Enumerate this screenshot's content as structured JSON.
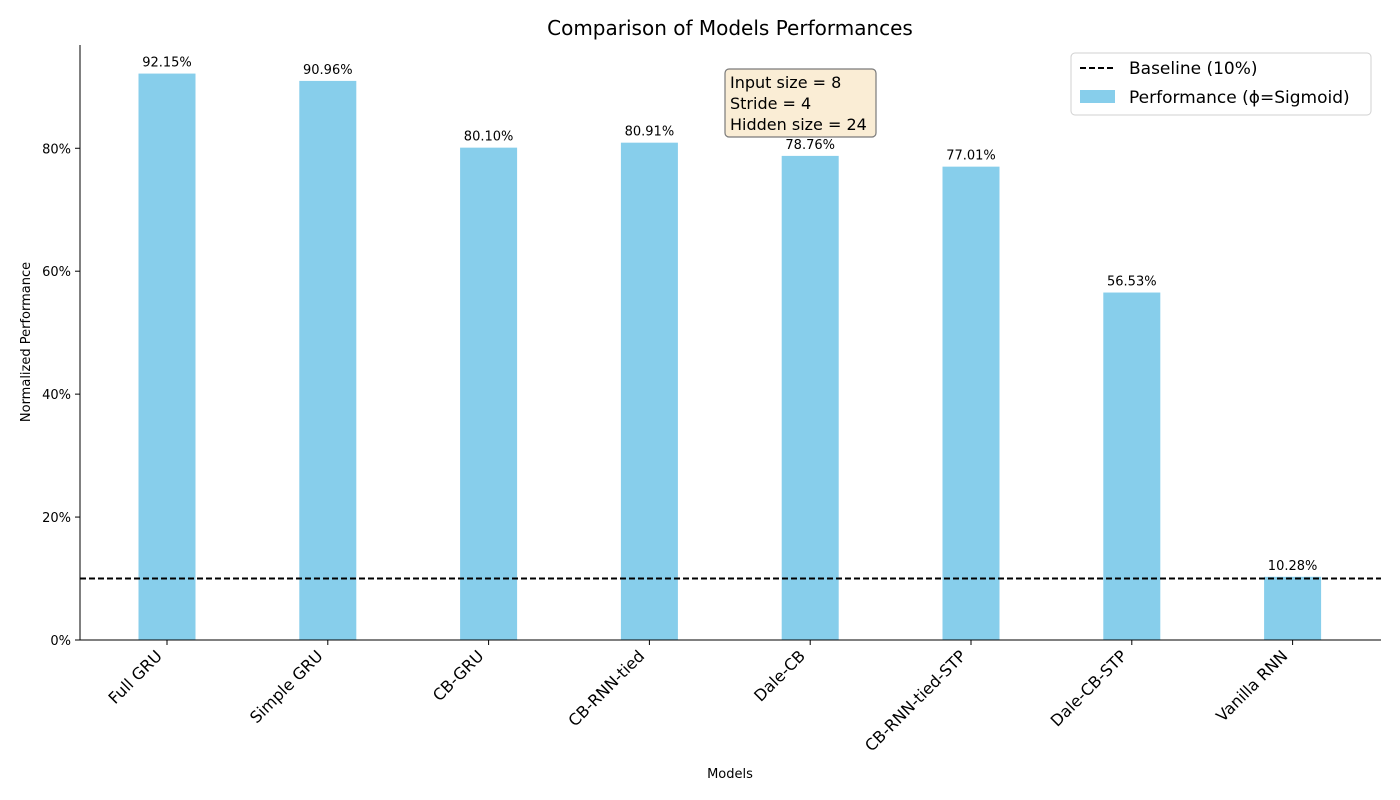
{
  "chart_data": {
    "type": "bar",
    "title": "Comparison of Models Performances",
    "xlabel": "Models",
    "ylabel": "Normalized Performance",
    "categories": [
      "Full GRU",
      "Simple GRU",
      "CB-GRU",
      "CB-RNN-tied",
      "Dale-CB",
      "CB-RNN-tied-STP",
      "Dale-CB-STP",
      "Vanilla RNN"
    ],
    "series": [
      {
        "name": "Performance (ϕ=Sigmoid)",
        "values": [
          92.15,
          90.96,
          80.1,
          80.91,
          78.76,
          77.01,
          56.53,
          10.28
        ],
        "color": "#87ceeb"
      }
    ],
    "data_labels": [
      "92.15%",
      "90.96%",
      "80.10%",
      "80.91%",
      "78.76%",
      "77.01%",
      "56.53%",
      "10.28%"
    ],
    "baseline": {
      "name": "Baseline (10%)",
      "value": 10,
      "color": "#000000",
      "style": "dashed"
    },
    "ylim": [
      0,
      96.8
    ],
    "yticks": [
      0,
      20,
      40,
      60,
      80
    ],
    "ytick_labels": [
      "0%",
      "20%",
      "40%",
      "60%",
      "80%"
    ],
    "grid": false,
    "legend_position": "top-right",
    "annotation": {
      "lines": [
        "Input size = 8",
        "Stride = 4",
        "Hidden size = 24"
      ],
      "background": "#f5deb3"
    }
  }
}
